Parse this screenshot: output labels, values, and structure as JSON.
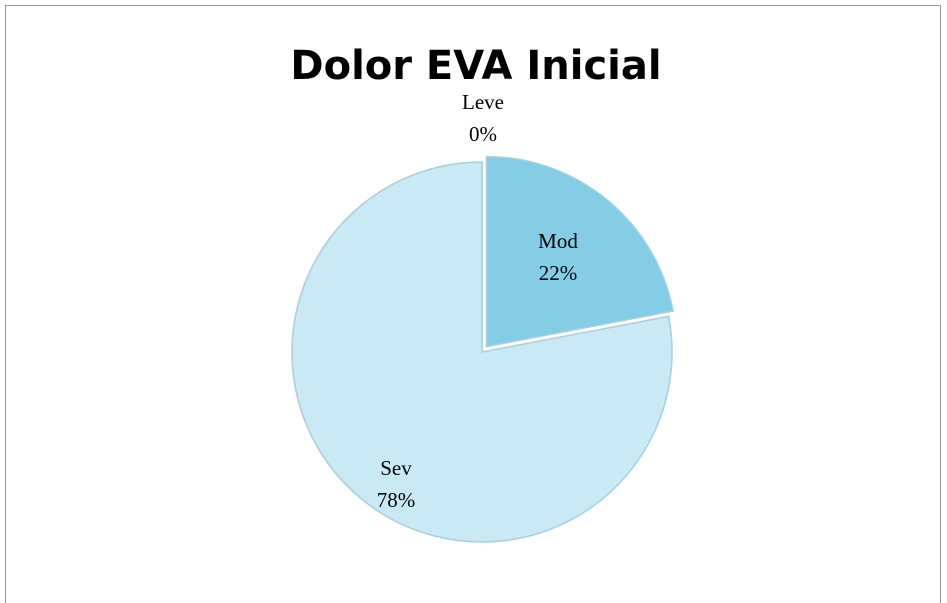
{
  "chart_data": {
    "type": "pie",
    "title": "Dolor EVA Inicial",
    "categories": [
      "Leve",
      "Mod",
      "Sev"
    ],
    "values": [
      0,
      22,
      78
    ],
    "value_labels": [
      "0%",
      "22%",
      "78%"
    ],
    "colors": [
      "#a9dcec",
      "#85cde4",
      "#c9eaf5"
    ]
  }
}
